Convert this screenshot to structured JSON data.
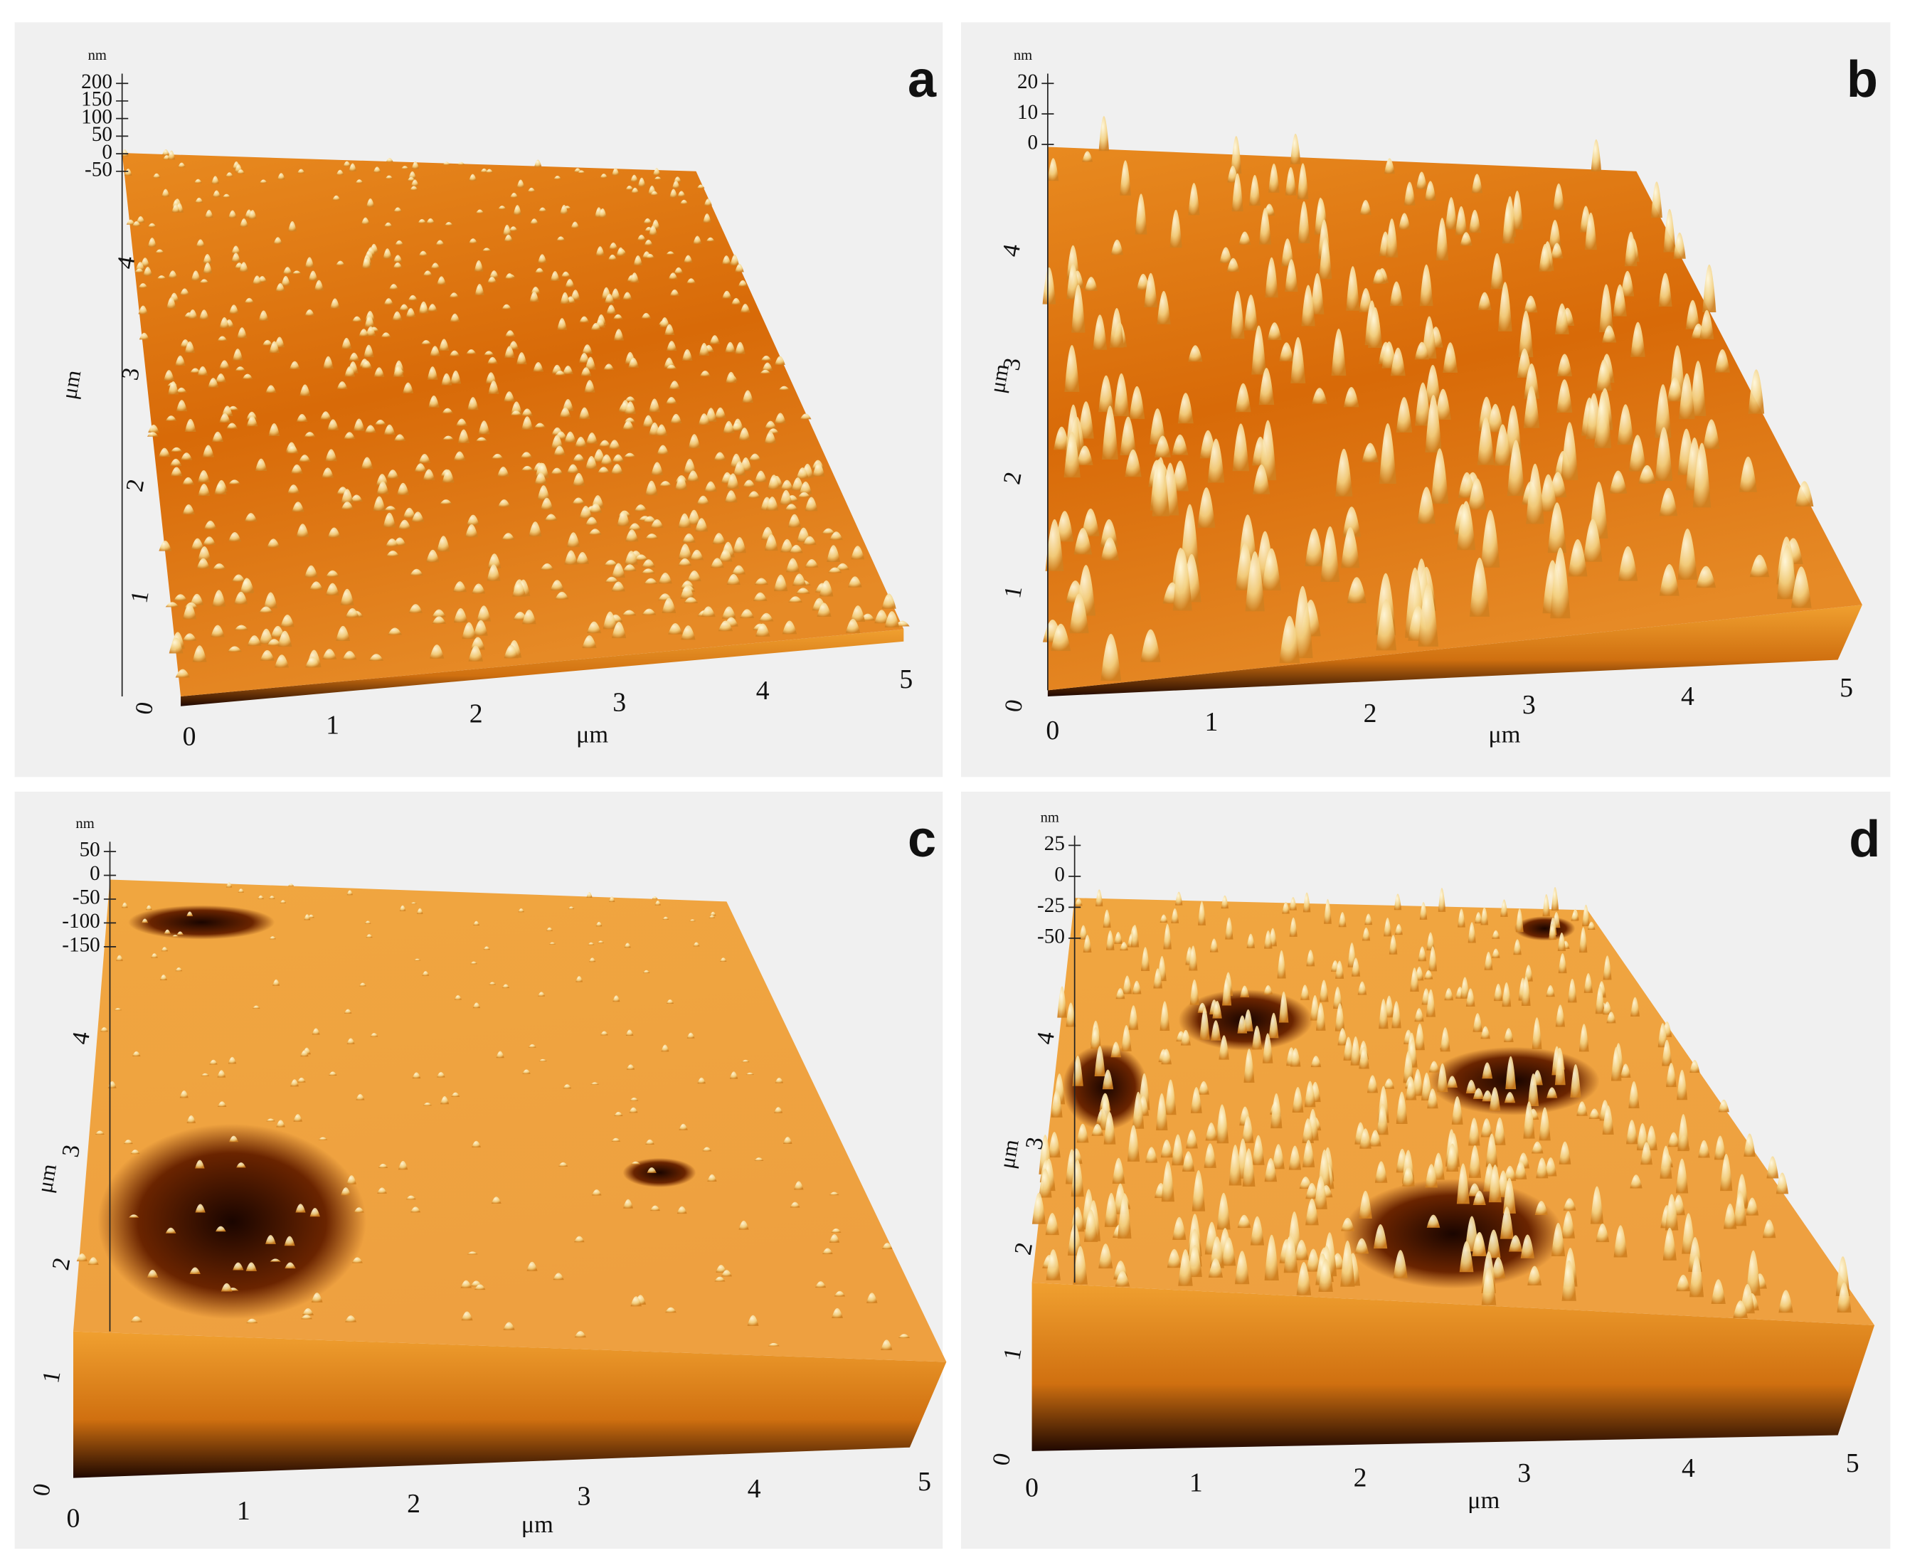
{
  "panels": [
    {
      "label": "a",
      "z_unit": "nm",
      "z_ticks": [
        "200",
        "150",
        "100",
        "50",
        "0",
        "-50"
      ],
      "y_unit": "μm",
      "y_ticks": [
        "0",
        "1",
        "2",
        "3",
        "4"
      ],
      "x_unit": "μm",
      "x_ticks": [
        "0",
        "1",
        "2",
        "3",
        "4",
        "5"
      ]
    },
    {
      "label": "b",
      "z_unit": "nm",
      "z_ticks": [
        "20",
        "10",
        "0"
      ],
      "y_unit": "μm",
      "y_ticks": [
        "0",
        "1",
        "2",
        "3",
        "4"
      ],
      "x_unit": "μm",
      "x_ticks": [
        "0",
        "1",
        "2",
        "3",
        "4",
        "5"
      ]
    },
    {
      "label": "c",
      "z_unit": "nm",
      "z_ticks": [
        "50",
        "0",
        "-50",
        "-100",
        "-150"
      ],
      "y_unit": "μm",
      "y_ticks": [
        "0",
        "1",
        "2",
        "3",
        "4"
      ],
      "x_unit": "μm",
      "x_ticks": [
        "0",
        "1",
        "2",
        "3",
        "4",
        "5"
      ]
    },
    {
      "label": "d",
      "z_unit": "nm",
      "z_ticks": [
        "25",
        "0",
        "-25",
        "-50"
      ],
      "y_unit": "μm",
      "y_ticks": [
        "0",
        "1",
        "2",
        "3",
        "4"
      ],
      "x_unit": "μm",
      "x_ticks": [
        "0",
        "1",
        "2",
        "3",
        "4",
        "5"
      ]
    }
  ]
}
